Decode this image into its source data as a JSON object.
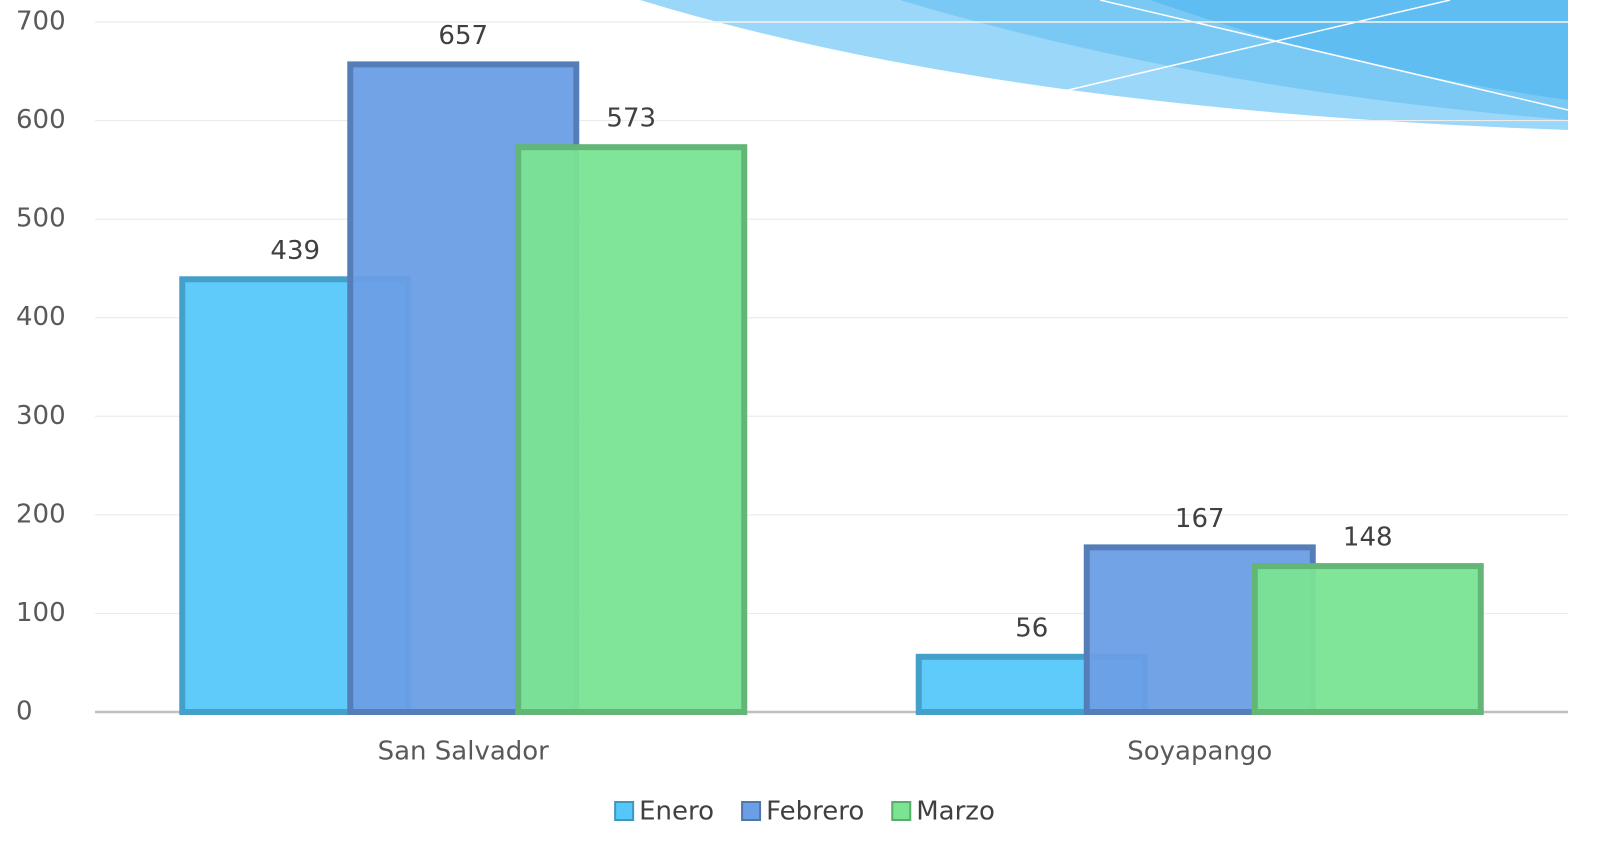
{
  "chart_data": {
    "type": "bar",
    "categories": [
      "San Salvador",
      "Soyapango"
    ],
    "series": [
      {
        "name": "Enero",
        "color": "#55c8fb",
        "values": [
          439,
          56
        ]
      },
      {
        "name": "Febrero",
        "color": "#6a9ee6",
        "values": [
          657,
          167
        ]
      },
      {
        "name": "Marzo",
        "color": "#7ae493",
        "values": [
          573,
          148
        ]
      }
    ],
    "ylim": [
      0,
      700
    ],
    "yticks": [
      0,
      100,
      200,
      300,
      400,
      500,
      600,
      700
    ],
    "grid": true,
    "legend": "bottom"
  }
}
